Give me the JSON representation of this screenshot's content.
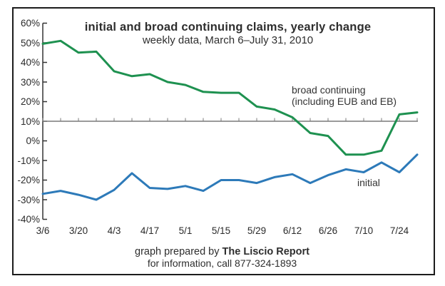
{
  "title": "initial and broad continuing claims, yearly change",
  "subtitle": "weekly data, March 6–July 31, 2010",
  "annotations": {
    "broad_line1": "broad continuing",
    "broad_line2": "(including EUB and EB)",
    "initial_label": "initial"
  },
  "footer": {
    "prefix": "graph prepared by ",
    "bold": "The Liscio Report",
    "line2": "for information, call 877-324-1893"
  },
  "colors": {
    "broad_green": "#1e9150",
    "initial_blue": "#2d7ab9",
    "baseline_gray": "#7a7a7a",
    "axis_dark": "#333333",
    "frame_black": "#1c1c1c"
  },
  "chart_data": {
    "type": "line",
    "title": "initial and broad continuing claims, yearly change",
    "subtitle": "weekly data, March 6–July 31, 2010",
    "x": [
      "3/6",
      "3/13",
      "3/20",
      "3/27",
      "4/3",
      "4/10",
      "4/17",
      "4/24",
      "5/1",
      "5/8",
      "5/15",
      "5/22",
      "5/29",
      "6/5",
      "6/12",
      "6/19",
      "6/26",
      "7/3",
      "7/10",
      "7/17",
      "7/24",
      "7/31"
    ],
    "x_tick_labels": [
      "3/6",
      "3/20",
      "4/3",
      "4/17",
      "5/1",
      "5/15",
      "5/29",
      "6/12",
      "6/26",
      "7/10",
      "7/24"
    ],
    "y_tick_labels": [
      "60%",
      "50%",
      "40%",
      "30%",
      "20%",
      "10%",
      "0%",
      "-10%",
      "-20%",
      "-30%",
      "-40%"
    ],
    "y_tick_values": [
      60,
      50,
      40,
      30,
      20,
      10,
      0,
      -10,
      -20,
      -30,
      -40
    ],
    "ylim": [
      -40,
      60
    ],
    "baseline_value": 10,
    "grid": "single horizontal reference line at 10% with weekly tick marks",
    "legend_position": "inline text annotations",
    "series": [
      {
        "name": "broad continuing (including EUB and EB)",
        "color": "#1e9150",
        "values": [
          49.5,
          51,
          45,
          45.5,
          35.5,
          33,
          34,
          30,
          28.5,
          25,
          24.5,
          24.5,
          17.5,
          16,
          12,
          4,
          2.5,
          -7,
          -7,
          -5,
          13.5,
          14.5
        ]
      },
      {
        "name": "initial",
        "color": "#2d7ab9",
        "values": [
          -27,
          -25.5,
          -27.5,
          -30,
          -25,
          -16.5,
          -24,
          -24.5,
          -23,
          -25.5,
          -20,
          -20,
          -21.5,
          -18.5,
          -17,
          -21.5,
          -17.5,
          -14.5,
          -16,
          -11,
          -16,
          -7
        ]
      }
    ]
  }
}
